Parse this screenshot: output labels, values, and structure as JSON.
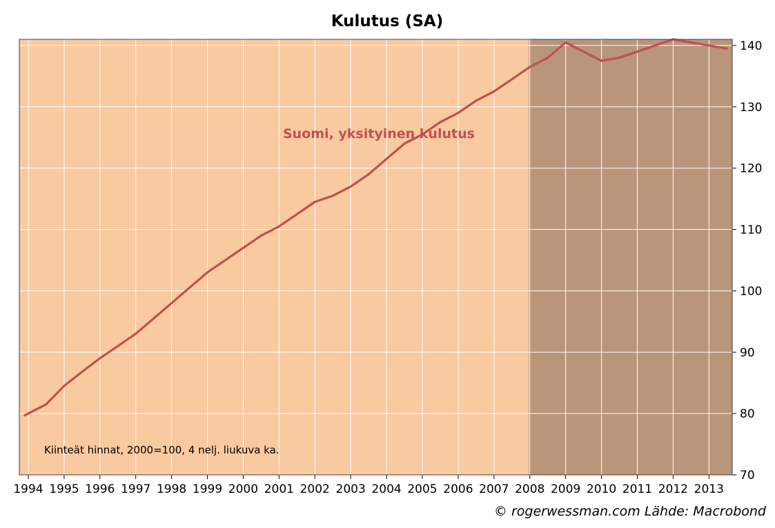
{
  "chart_data": {
    "type": "line",
    "title": "Kulutus (SA)",
    "xlabel": "",
    "ylabel": "",
    "x_range": [
      1993.75,
      2013.65
    ],
    "ylim": [
      70,
      141
    ],
    "y_ticks": [
      70,
      80,
      90,
      100,
      110,
      120,
      130,
      140
    ],
    "x_tick_labels": [
      "1994",
      "1995",
      "1996",
      "1997",
      "1998",
      "1999",
      "2000",
      "2001",
      "2002",
      "2003",
      "2004",
      "2005",
      "2006",
      "2007",
      "2008",
      "2009",
      "2010",
      "2011",
      "2012",
      "2013"
    ],
    "y_axis_side": "right",
    "grid": true,
    "background_color": "#f9c9a0",
    "shaded_region": {
      "from": 2007.97,
      "to": 2013.65,
      "color": "#b9957a"
    },
    "note": "Kiinteät hinnat, 2000=100, 4 nelj. liukuva ka.",
    "credit": "© rogerwessman.com Lähde: Macrobond",
    "series": [
      {
        "name": "Suomi, yksityinen kulutus",
        "color": "#c0504d",
        "points": [
          [
            1993.9,
            79.7
          ],
          [
            1994.0,
            80.0
          ],
          [
            1994.5,
            81.5
          ],
          [
            1995.0,
            84.5
          ],
          [
            1995.5,
            86.8
          ],
          [
            1996.0,
            89.0
          ],
          [
            1996.5,
            91.0
          ],
          [
            1997.0,
            93.0
          ],
          [
            1997.5,
            95.5
          ],
          [
            1998.0,
            98.0
          ],
          [
            1998.5,
            100.5
          ],
          [
            1999.0,
            103.0
          ],
          [
            1999.5,
            105.0
          ],
          [
            2000.0,
            107.0
          ],
          [
            2000.5,
            109.0
          ],
          [
            2001.0,
            110.5
          ],
          [
            2001.5,
            112.5
          ],
          [
            2002.0,
            114.5
          ],
          [
            2002.5,
            115.5
          ],
          [
            2003.0,
            117.0
          ],
          [
            2003.5,
            119.0
          ],
          [
            2004.0,
            121.5
          ],
          [
            2004.5,
            124.0
          ],
          [
            2005.0,
            125.5
          ],
          [
            2005.5,
            127.5
          ],
          [
            2006.0,
            129.0
          ],
          [
            2006.5,
            131.0
          ],
          [
            2007.0,
            132.5
          ],
          [
            2007.5,
            134.5
          ],
          [
            2008.0,
            136.5
          ],
          [
            2008.5,
            138.0
          ],
          [
            2009.0,
            140.5
          ],
          [
            2009.5,
            139.0
          ],
          [
            2010.0,
            137.5
          ],
          [
            2010.5,
            138.0
          ],
          [
            2011.0,
            139.0
          ],
          [
            2011.5,
            140.0
          ],
          [
            2012.0,
            141.0
          ],
          [
            2012.5,
            140.5
          ],
          [
            2013.0,
            140.0
          ],
          [
            2013.5,
            139.5
          ]
        ]
      }
    ]
  }
}
